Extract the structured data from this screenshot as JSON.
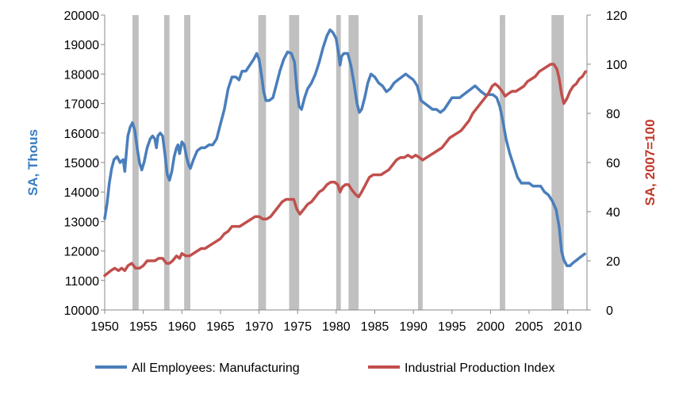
{
  "chart_data": {
    "type": "line",
    "xlim": [
      1950,
      2012.5
    ],
    "xticks": [
      "1950",
      "1955",
      "1960",
      "1965",
      "1970",
      "1975",
      "1980",
      "1985",
      "1990",
      "1995",
      "2000",
      "2005",
      "2010"
    ],
    "y_left": {
      "label": "SA, Thous",
      "color": "#3A7DC2",
      "lim": [
        10000,
        20000
      ],
      "ticks": [
        "10000",
        "11000",
        "12000",
        "13000",
        "14000",
        "15000",
        "16000",
        "17000",
        "18000",
        "19000",
        "20000"
      ]
    },
    "y_right": {
      "label": "SA, 2007=100",
      "color": "#C0392B",
      "lim": [
        0,
        120
      ],
      "ticks": [
        "0",
        "20",
        "40",
        "60",
        "80",
        "100",
        "120"
      ]
    },
    "recessions": [
      [
        1953.6,
        1954.4
      ],
      [
        1957.7,
        1958.4
      ],
      [
        1960.3,
        1961.1
      ],
      [
        1969.9,
        1970.9
      ],
      [
        1973.9,
        1975.2
      ],
      [
        1980.0,
        1980.6
      ],
      [
        1981.6,
        1982.9
      ],
      [
        1990.6,
        1991.2
      ],
      [
        2001.2,
        2001.9
      ],
      [
        2007.9,
        2009.5
      ]
    ],
    "recession_color": "#C0C0C0",
    "legend_position": "bottom",
    "series": [
      {
        "name": "All Employees: Manufacturing",
        "axis": "left",
        "color": "#4A7EBB",
        "points": [
          [
            1950.0,
            13100
          ],
          [
            1950.3,
            13600
          ],
          [
            1950.6,
            14300
          ],
          [
            1950.9,
            14800
          ],
          [
            1951.2,
            15100
          ],
          [
            1951.6,
            15200
          ],
          [
            1952.0,
            15000
          ],
          [
            1952.4,
            15100
          ],
          [
            1952.6,
            14700
          ],
          [
            1952.8,
            15300
          ],
          [
            1953.0,
            15900
          ],
          [
            1953.3,
            16200
          ],
          [
            1953.6,
            16350
          ],
          [
            1953.9,
            16100
          ],
          [
            1954.2,
            15500
          ],
          [
            1954.5,
            15000
          ],
          [
            1954.8,
            14750
          ],
          [
            1955.1,
            15000
          ],
          [
            1955.5,
            15500
          ],
          [
            1955.9,
            15800
          ],
          [
            1956.2,
            15900
          ],
          [
            1956.5,
            15800
          ],
          [
            1956.7,
            15500
          ],
          [
            1956.9,
            15900
          ],
          [
            1957.2,
            16000
          ],
          [
            1957.5,
            15900
          ],
          [
            1957.8,
            15300
          ],
          [
            1958.1,
            14600
          ],
          [
            1958.4,
            14400
          ],
          [
            1958.7,
            14700
          ],
          [
            1959.0,
            15200
          ],
          [
            1959.3,
            15500
          ],
          [
            1959.5,
            15600
          ],
          [
            1959.7,
            15300
          ],
          [
            1960.0,
            15700
          ],
          [
            1960.3,
            15600
          ],
          [
            1960.6,
            15200
          ],
          [
            1960.9,
            14900
          ],
          [
            1961.1,
            14800
          ],
          [
            1961.5,
            15100
          ],
          [
            1962.0,
            15400
          ],
          [
            1962.5,
            15500
          ],
          [
            1963.0,
            15500
          ],
          [
            1963.5,
            15600
          ],
          [
            1964.0,
            15600
          ],
          [
            1964.5,
            15800
          ],
          [
            1965.0,
            16300
          ],
          [
            1965.5,
            16800
          ],
          [
            1966.0,
            17500
          ],
          [
            1966.5,
            17900
          ],
          [
            1967.0,
            17900
          ],
          [
            1967.4,
            17800
          ],
          [
            1967.8,
            18100
          ],
          [
            1968.3,
            18100
          ],
          [
            1968.8,
            18300
          ],
          [
            1969.3,
            18500
          ],
          [
            1969.7,
            18700
          ],
          [
            1970.0,
            18500
          ],
          [
            1970.3,
            18000
          ],
          [
            1970.6,
            17400
          ],
          [
            1970.9,
            17100
          ],
          [
            1971.3,
            17100
          ],
          [
            1971.8,
            17200
          ],
          [
            1972.2,
            17600
          ],
          [
            1972.7,
            18100
          ],
          [
            1973.2,
            18500
          ],
          [
            1973.7,
            18750
          ],
          [
            1974.2,
            18700
          ],
          [
            1974.6,
            18400
          ],
          [
            1974.9,
            17500
          ],
          [
            1975.2,
            16900
          ],
          [
            1975.5,
            16800
          ],
          [
            1975.9,
            17200
          ],
          [
            1976.3,
            17500
          ],
          [
            1976.8,
            17700
          ],
          [
            1977.3,
            18000
          ],
          [
            1977.8,
            18400
          ],
          [
            1978.3,
            18900
          ],
          [
            1978.8,
            19300
          ],
          [
            1979.2,
            19500
          ],
          [
            1979.6,
            19400
          ],
          [
            1980.0,
            19200
          ],
          [
            1980.3,
            18700
          ],
          [
            1980.5,
            18300
          ],
          [
            1980.7,
            18600
          ],
          [
            1981.0,
            18700
          ],
          [
            1981.5,
            18700
          ],
          [
            1981.9,
            18300
          ],
          [
            1982.3,
            17700
          ],
          [
            1982.7,
            17000
          ],
          [
            1983.0,
            16700
          ],
          [
            1983.3,
            16800
          ],
          [
            1983.7,
            17200
          ],
          [
            1984.1,
            17700
          ],
          [
            1984.5,
            18000
          ],
          [
            1985.0,
            17900
          ],
          [
            1985.5,
            17700
          ],
          [
            1986.0,
            17600
          ],
          [
            1986.5,
            17400
          ],
          [
            1987.0,
            17500
          ],
          [
            1987.5,
            17700
          ],
          [
            1988.0,
            17800
          ],
          [
            1988.5,
            17900
          ],
          [
            1989.0,
            18000
          ],
          [
            1989.5,
            17900
          ],
          [
            1990.0,
            17800
          ],
          [
            1990.5,
            17600
          ],
          [
            1991.0,
            17100
          ],
          [
            1991.5,
            17000
          ],
          [
            1992.0,
            16900
          ],
          [
            1992.5,
            16800
          ],
          [
            1993.0,
            16800
          ],
          [
            1993.5,
            16700
          ],
          [
            1994.0,
            16800
          ],
          [
            1994.5,
            17000
          ],
          [
            1995.0,
            17200
          ],
          [
            1995.5,
            17200
          ],
          [
            1996.0,
            17200
          ],
          [
            1996.5,
            17300
          ],
          [
            1997.0,
            17400
          ],
          [
            1997.5,
            17500
          ],
          [
            1998.0,
            17600
          ],
          [
            1998.4,
            17500
          ],
          [
            1998.8,
            17400
          ],
          [
            1999.3,
            17300
          ],
          [
            1999.8,
            17300
          ],
          [
            2000.3,
            17300
          ],
          [
            2000.8,
            17200
          ],
          [
            2001.2,
            16900
          ],
          [
            2001.6,
            16400
          ],
          [
            2002.0,
            15800
          ],
          [
            2002.5,
            15300
          ],
          [
            2003.0,
            14900
          ],
          [
            2003.5,
            14500
          ],
          [
            2004.0,
            14300
          ],
          [
            2004.5,
            14300
          ],
          [
            2005.0,
            14300
          ],
          [
            2005.5,
            14200
          ],
          [
            2006.0,
            14200
          ],
          [
            2006.5,
            14200
          ],
          [
            2007.0,
            14000
          ],
          [
            2007.5,
            13900
          ],
          [
            2008.0,
            13700
          ],
          [
            2008.5,
            13400
          ],
          [
            2008.9,
            12800
          ],
          [
            2009.2,
            12000
          ],
          [
            2009.5,
            11700
          ],
          [
            2009.9,
            11500
          ],
          [
            2010.3,
            11500
          ],
          [
            2010.7,
            11600
          ],
          [
            2011.2,
            11700
          ],
          [
            2011.7,
            11800
          ],
          [
            2012.2,
            11900
          ]
        ]
      },
      {
        "name": "Industrial Production Index",
        "axis": "right",
        "color": "#C0504D",
        "points": [
          [
            1950.0,
            14
          ],
          [
            1950.4,
            15
          ],
          [
            1950.8,
            16
          ],
          [
            1951.3,
            17
          ],
          [
            1951.8,
            16
          ],
          [
            1952.2,
            17
          ],
          [
            1952.6,
            16
          ],
          [
            1953.0,
            18
          ],
          [
            1953.5,
            19
          ],
          [
            1954.0,
            17
          ],
          [
            1954.5,
            17
          ],
          [
            1955.0,
            18
          ],
          [
            1955.5,
            20
          ],
          [
            1956.0,
            20
          ],
          [
            1956.5,
            20
          ],
          [
            1957.0,
            21
          ],
          [
            1957.5,
            21
          ],
          [
            1958.0,
            19
          ],
          [
            1958.4,
            19
          ],
          [
            1958.8,
            20
          ],
          [
            1959.3,
            22
          ],
          [
            1959.7,
            21
          ],
          [
            1960.0,
            23
          ],
          [
            1960.5,
            22
          ],
          [
            1961.0,
            22
          ],
          [
            1961.5,
            23
          ],
          [
            1962.0,
            24
          ],
          [
            1962.5,
            25
          ],
          [
            1963.0,
            25
          ],
          [
            1963.5,
            26
          ],
          [
            1964.0,
            27
          ],
          [
            1964.5,
            28
          ],
          [
            1965.0,
            29
          ],
          [
            1965.5,
            31
          ],
          [
            1966.0,
            32
          ],
          [
            1966.5,
            34
          ],
          [
            1967.0,
            34
          ],
          [
            1967.5,
            34
          ],
          [
            1968.0,
            35
          ],
          [
            1968.5,
            36
          ],
          [
            1969.0,
            37
          ],
          [
            1969.5,
            38
          ],
          [
            1970.0,
            38
          ],
          [
            1970.5,
            37
          ],
          [
            1971.0,
            37
          ],
          [
            1971.5,
            38
          ],
          [
            1972.0,
            40
          ],
          [
            1972.5,
            42
          ],
          [
            1973.0,
            44
          ],
          [
            1973.5,
            45
          ],
          [
            1974.0,
            45
          ],
          [
            1974.5,
            45
          ],
          [
            1974.9,
            41
          ],
          [
            1975.3,
            39
          ],
          [
            1975.8,
            41
          ],
          [
            1976.3,
            43
          ],
          [
            1976.8,
            44
          ],
          [
            1977.3,
            46
          ],
          [
            1977.8,
            48
          ],
          [
            1978.3,
            49
          ],
          [
            1978.8,
            51
          ],
          [
            1979.3,
            52
          ],
          [
            1979.8,
            52
          ],
          [
            1980.2,
            51
          ],
          [
            1980.5,
            48
          ],
          [
            1980.8,
            50
          ],
          [
            1981.2,
            51
          ],
          [
            1981.6,
            51
          ],
          [
            1982.0,
            49
          ],
          [
            1982.5,
            47
          ],
          [
            1982.9,
            46
          ],
          [
            1983.3,
            48
          ],
          [
            1983.8,
            51
          ],
          [
            1984.3,
            54
          ],
          [
            1984.8,
            55
          ],
          [
            1985.3,
            55
          ],
          [
            1985.8,
            55
          ],
          [
            1986.3,
            56
          ],
          [
            1986.8,
            57
          ],
          [
            1987.3,
            59
          ],
          [
            1987.8,
            61
          ],
          [
            1988.3,
            62
          ],
          [
            1988.8,
            62
          ],
          [
            1989.3,
            63
          ],
          [
            1989.8,
            62
          ],
          [
            1990.3,
            63
          ],
          [
            1990.8,
            62
          ],
          [
            1991.2,
            61
          ],
          [
            1991.7,
            62
          ],
          [
            1992.2,
            63
          ],
          [
            1992.7,
            64
          ],
          [
            1993.2,
            65
          ],
          [
            1993.7,
            66
          ],
          [
            1994.2,
            68
          ],
          [
            1994.7,
            70
          ],
          [
            1995.2,
            71
          ],
          [
            1995.7,
            72
          ],
          [
            1996.2,
            73
          ],
          [
            1996.7,
            75
          ],
          [
            1997.2,
            77
          ],
          [
            1997.7,
            80
          ],
          [
            1998.2,
            82
          ],
          [
            1998.7,
            84
          ],
          [
            1999.2,
            86
          ],
          [
            1999.7,
            88
          ],
          [
            2000.2,
            91
          ],
          [
            2000.6,
            92
          ],
          [
            2001.0,
            91
          ],
          [
            2001.5,
            89
          ],
          [
            2001.9,
            87
          ],
          [
            2002.3,
            88
          ],
          [
            2002.8,
            89
          ],
          [
            2003.3,
            89
          ],
          [
            2003.8,
            90
          ],
          [
            2004.3,
            91
          ],
          [
            2004.8,
            93
          ],
          [
            2005.3,
            94
          ],
          [
            2005.8,
            95
          ],
          [
            2006.3,
            97
          ],
          [
            2006.8,
            98
          ],
          [
            2007.3,
            99
          ],
          [
            2007.8,
            100
          ],
          [
            2008.2,
            100
          ],
          [
            2008.6,
            98
          ],
          [
            2008.9,
            94
          ],
          [
            2009.2,
            88
          ],
          [
            2009.5,
            84
          ],
          [
            2009.9,
            86
          ],
          [
            2010.3,
            89
          ],
          [
            2010.7,
            91
          ],
          [
            2011.1,
            92
          ],
          [
            2011.5,
            94
          ],
          [
            2011.9,
            95
          ],
          [
            2012.3,
            97
          ]
        ]
      }
    ]
  }
}
